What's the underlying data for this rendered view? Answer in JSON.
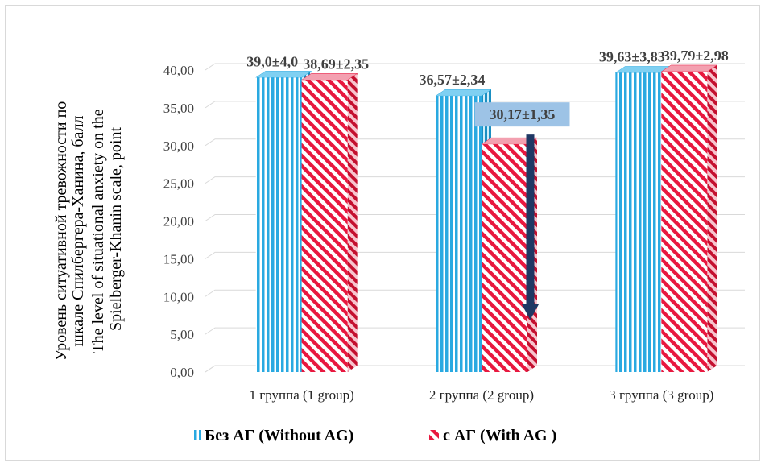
{
  "chart_data": {
    "type": "bar",
    "categories": [
      "1 группа (1 group)",
      "2 группа (2 group)",
      "3 группа (3 group)"
    ],
    "series": [
      {
        "name": "Без АГ (Without AG)",
        "values": [
          39.0,
          36.57,
          39.63
        ],
        "labels": [
          "39,0±4,0",
          "36,57±2,34",
          "39,63±3,83"
        ],
        "color": "#29a9e1"
      },
      {
        "name": "с АГ (With AG )",
        "values": [
          38.69,
          30.17,
          39.79
        ],
        "labels": [
          "38,69±2,35",
          "30,17±1,35",
          "39,79±2,98"
        ],
        "color": "#e8183f"
      }
    ],
    "ylabel_lines": [
      "Уровень ситуативной тревожности по",
      "шкале Спилбергера-Ханина,  балл",
      "The level of situational  anxiety on the",
      "Spielberger-Khanin  scale, point"
    ],
    "yticks": [
      "0,00",
      "5,00",
      "10,00",
      "15,00",
      "20,00",
      "25,00",
      "30,00",
      "35,00",
      "40,00"
    ],
    "ylim": [
      0,
      40
    ],
    "grid": true,
    "legend_position": "bottom",
    "highlight": {
      "category": "2 группа (2 group)",
      "series": "с АГ (With AG )",
      "label_box_color": "#9dc3e6",
      "arrow_color": "#1f3864",
      "arrow": "down"
    }
  }
}
